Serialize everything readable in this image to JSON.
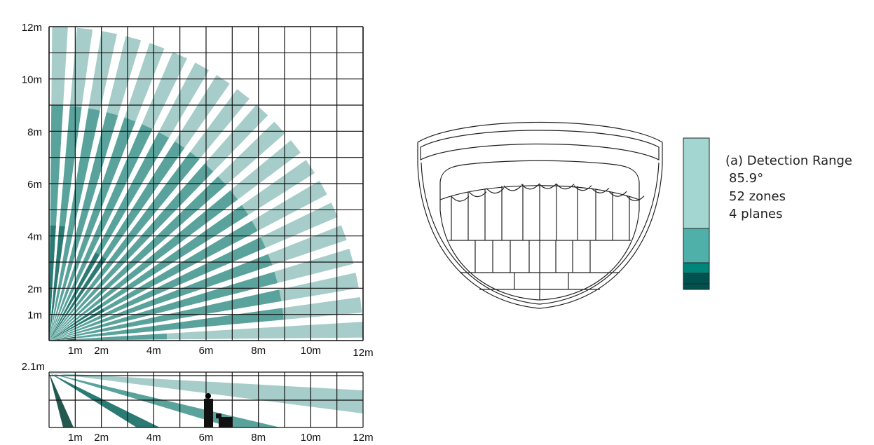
{
  "top_view": {
    "x_ticks": [
      {
        "v": 1,
        "label": "1m"
      },
      {
        "v": 2,
        "label": "2m"
      },
      {
        "v": 4,
        "label": "4m"
      },
      {
        "v": 6,
        "label": "6m"
      },
      {
        "v": 8,
        "label": "8m"
      },
      {
        "v": 10,
        "label": "10m"
      },
      {
        "v": 12,
        "label": "12m"
      }
    ],
    "y_ticks": [
      {
        "v": 1,
        "label": "1m"
      },
      {
        "v": 2,
        "label": "2m"
      },
      {
        "v": 4,
        "label": "4m"
      },
      {
        "v": 6,
        "label": "6m"
      },
      {
        "v": 8,
        "label": "8m"
      },
      {
        "v": 10,
        "label": "10m"
      },
      {
        "v": 12,
        "label": "12m"
      }
    ],
    "range_m": 12
  },
  "side_view": {
    "height_label": "2.1m",
    "x_ticks": [
      {
        "v": 1,
        "label": "1m"
      },
      {
        "v": 2,
        "label": "2m"
      },
      {
        "v": 4,
        "label": "4m"
      },
      {
        "v": 6,
        "label": "6m"
      },
      {
        "v": 8,
        "label": "8m"
      },
      {
        "v": 10,
        "label": "10m"
      },
      {
        "v": 12,
        "label": "12m"
      }
    ]
  },
  "legend": {
    "title": "(a) Detection Range",
    "angle": "85.9°",
    "zones": "52 zones",
    "planes": "4 planes"
  },
  "colors": {
    "light": "#a6cdc9",
    "medium": "#5aa39c",
    "dark": "#2b7b74",
    "darkest": "#23584f",
    "legend_light": "#a3d6d0",
    "legend_medium": "#4fb0a9",
    "legend_teal": "#00857a",
    "legend_dark": "#00524f"
  }
}
